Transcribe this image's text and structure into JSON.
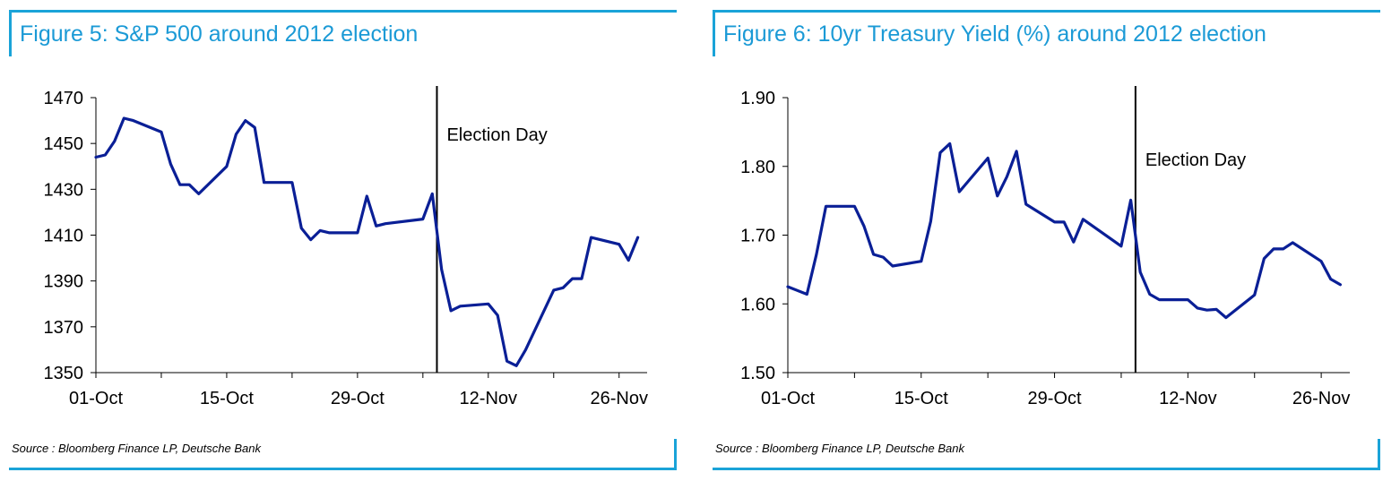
{
  "figures": [
    {
      "title": "Figure 5: S&P 500 around 2012 election",
      "source": "Source : Bloomberg Finance LP, Deutsche Bank"
    },
    {
      "title": "Figure 6: 10yr Treasury Yield (%) around 2012 election",
      "source": "Source : Bloomberg Finance LP, Deutsche Bank"
    }
  ],
  "colors": {
    "accent": "#1aa3d8",
    "title": "#1b9ad6",
    "series": "#0a1f96"
  },
  "chart_data": [
    {
      "type": "line",
      "title": "Figure 5: S&P 500 around 2012 election",
      "xlabel": "",
      "ylabel": "",
      "x_tick_labels": [
        "01-Oct",
        "15-Oct",
        "29-Oct",
        "12-Nov",
        "26-Nov"
      ],
      "x_tick_days": [
        1,
        15,
        29,
        43,
        57
      ],
      "xlim_days": [
        1,
        60
      ],
      "y_ticks": [
        1350,
        1370,
        1390,
        1410,
        1430,
        1450,
        1470
      ],
      "y_tick_labels": [
        "1350",
        "1370",
        "1390",
        "1410",
        "1430",
        "1450",
        "1470"
      ],
      "ylim": [
        1350,
        1470
      ],
      "grid": false,
      "event_marker": {
        "day": 37.5,
        "label": "Election Day"
      },
      "series": [
        {
          "x_days": [
            1,
            2,
            3,
            4,
            5,
            8,
            9,
            10,
            11,
            12,
            15,
            16,
            17,
            18,
            19,
            22,
            23,
            24,
            25,
            26,
            29,
            30,
            31,
            32,
            36,
            37,
            38,
            39,
            40,
            43,
            44,
            45,
            46,
            47,
            50,
            51,
            52,
            53,
            54,
            57,
            58,
            59
          ],
          "values": [
            1444,
            1445,
            1451,
            1461,
            1460,
            1455,
            1441,
            1432,
            1432,
            1428,
            1440,
            1454,
            1460,
            1457,
            1433,
            1433,
            1413,
            1408,
            1412,
            1411,
            1411,
            1427,
            1414,
            1415,
            1417,
            1428,
            1395,
            1377,
            1379,
            1380,
            1375,
            1355,
            1353,
            1360,
            1386,
            1387,
            1391,
            1391,
            1409,
            1406,
            1399,
            1409
          ]
        }
      ]
    },
    {
      "type": "line",
      "title": "Figure 6: 10yr Treasury Yield (%) around 2012 election",
      "xlabel": "",
      "ylabel": "",
      "x_tick_labels": [
        "01-Oct",
        "15-Oct",
        "29-Oct",
        "12-Nov",
        "26-Nov"
      ],
      "x_tick_days": [
        1,
        15,
        29,
        43,
        57
      ],
      "xlim_days": [
        1,
        60
      ],
      "y_ticks": [
        1.5,
        1.6,
        1.7,
        1.8,
        1.9
      ],
      "y_tick_labels": [
        "1.50",
        "1.60",
        "1.70",
        "1.80",
        "1.90"
      ],
      "ylim": [
        1.5,
        1.9
      ],
      "grid": false,
      "event_marker": {
        "day": 37.5,
        "label": "Election Day"
      },
      "series": [
        {
          "x_days": [
            1,
            3,
            4,
            5,
            8,
            9,
            10,
            11,
            12,
            15,
            16,
            17,
            18,
            19,
            22,
            23,
            24,
            25,
            26,
            29,
            30,
            31,
            32,
            36,
            37,
            38,
            39,
            40,
            43,
            44,
            45,
            46,
            47,
            50,
            51,
            52,
            53,
            54,
            57,
            58,
            59
          ],
          "values": [
            1.625,
            1.614,
            1.672,
            1.742,
            1.742,
            1.713,
            1.672,
            1.668,
            1.655,
            1.662,
            1.72,
            1.82,
            1.833,
            1.763,
            1.812,
            1.757,
            1.785,
            1.822,
            1.745,
            1.719,
            1.719,
            1.69,
            1.723,
            1.684,
            1.751,
            1.646,
            1.614,
            1.606,
            1.606,
            1.594,
            1.591,
            1.592,
            1.58,
            1.613,
            1.666,
            1.68,
            1.68,
            1.689,
            1.662,
            1.636,
            1.628
          ]
        }
      ]
    }
  ]
}
